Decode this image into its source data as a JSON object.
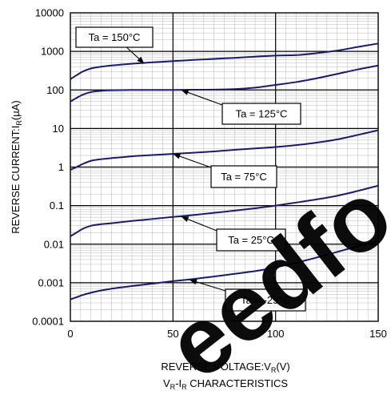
{
  "chart_data": {
    "type": "line",
    "title": "",
    "xlabel_main": "REVERSE VOLTAGE:V",
    "xlabel_sub": "R",
    "xlabel_unit": "(V)",
    "ylabel_main": "REVERSE CURRENT:I",
    "ylabel_sub": "R",
    "ylabel_unit": "(µA)",
    "caption_v": "V",
    "caption_v_sub": "R",
    "caption_dash": "-I",
    "caption_i_sub": "R",
    "caption_rest": " CHARACTERISTICS",
    "xlim": [
      0,
      150
    ],
    "ylim": [
      0.0001,
      10000
    ],
    "y_scale": "log",
    "grid": true,
    "x_ticks": [
      "0",
      "50",
      "100",
      "150"
    ],
    "y_ticks": [
      "0.0001",
      "0.001",
      "0.01",
      "0.1",
      "1",
      "10",
      "100",
      "1000",
      "10000"
    ],
    "line_color": "#1a1a6e",
    "series": [
      {
        "name": "Ta = 150°C",
        "x": [
          0,
          3,
          6,
          10,
          15,
          20,
          30,
          40,
          50,
          60,
          70,
          80,
          90,
          100,
          110,
          120,
          130,
          140,
          150
        ],
        "y": [
          190,
          240,
          300,
          360,
          400,
          430,
          480,
          520,
          560,
          600,
          640,
          680,
          730,
          780,
          800,
          900,
          1050,
          1300,
          1600
        ]
      },
      {
        "name": "Ta = 125°C",
        "x": [
          0,
          3,
          6,
          10,
          15,
          20,
          30,
          40,
          50,
          60,
          70,
          80,
          90,
          100,
          110,
          120,
          130,
          140,
          150
        ],
        "y": [
          50,
          62,
          75,
          88,
          95,
          98,
          100,
          100,
          100,
          101,
          102,
          105,
          115,
          135,
          160,
          200,
          260,
          340,
          430
        ]
      },
      {
        "name": "Ta = 75°C",
        "x": [
          0,
          3,
          6,
          10,
          15,
          20,
          30,
          40,
          50,
          60,
          70,
          80,
          90,
          100,
          110,
          120,
          130,
          140,
          150
        ],
        "y": [
          0.85,
          1.0,
          1.2,
          1.45,
          1.6,
          1.7,
          1.9,
          2.05,
          2.2,
          2.35,
          2.55,
          2.8,
          3.05,
          3.3,
          3.7,
          4.3,
          5.2,
          6.8,
          9
        ]
      },
      {
        "name": "Ta = 25°C",
        "x": [
          0,
          3,
          6,
          10,
          15,
          20,
          30,
          40,
          50,
          60,
          70,
          80,
          90,
          100,
          110,
          120,
          130,
          140,
          150
        ],
        "y": [
          0.016,
          0.02,
          0.025,
          0.03,
          0.033,
          0.035,
          0.04,
          0.045,
          0.051,
          0.057,
          0.065,
          0.074,
          0.085,
          0.1,
          0.12,
          0.145,
          0.18,
          0.24,
          0.33
        ]
      },
      {
        "name": "Ta = -25°C",
        "x": [
          0,
          3,
          6,
          10,
          15,
          20,
          30,
          40,
          50,
          60,
          70,
          80,
          90,
          100,
          110,
          120,
          130,
          140,
          150
        ],
        "y": [
          0.00037,
          0.00042,
          0.00048,
          0.00055,
          0.00063,
          0.0007,
          0.00082,
          0.00095,
          0.0011,
          0.00125,
          0.00145,
          0.0017,
          0.002,
          0.0025,
          0.0033,
          0.0045,
          0.0063,
          0.0088,
          0.012
        ]
      }
    ],
    "annotations": [
      {
        "text": "Ta = 150°C",
        "target_x": 36,
        "target_y": 480
      },
      {
        "text": "Ta = 125°C",
        "target_x": 54,
        "target_y": 100
      },
      {
        "text": "Ta = 75°C",
        "target_x": 50,
        "target_y": 2.2
      },
      {
        "text": "Ta = 25°C",
        "target_x": 54,
        "target_y": 0.052
      },
      {
        "text": "Ta = -25°C",
        "target_x": 58,
        "target_y": 0.0012
      }
    ]
  },
  "watermark": {
    "text": "eedfo",
    "color": "#000000"
  }
}
